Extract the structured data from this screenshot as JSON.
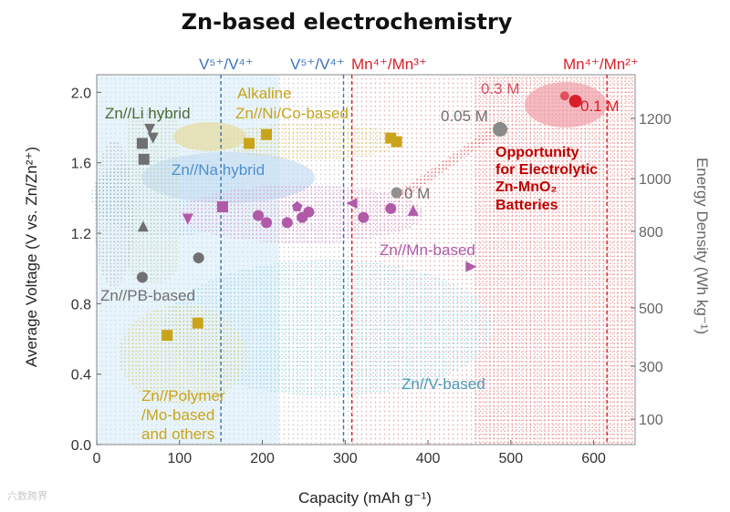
{
  "chart_data": {
    "type": "scatter",
    "title": "Zn-based electrochemistry",
    "xlabel": "Capacity (mAh g⁻¹)",
    "ylabel": "Average Voltage (V vs. Zn/Zn²⁺)",
    "y2label": "Energy Density (Wh kg⁻¹)",
    "xlim": [
      0,
      650
    ],
    "ylim": [
      0,
      2.1
    ],
    "x_ticks": [
      0,
      100,
      200,
      300,
      400,
      500,
      600
    ],
    "y_ticks": [
      0.0,
      0.4,
      0.8,
      1.2,
      1.6,
      2.0
    ],
    "y_tick_labels": [
      "0.0",
      "0.4",
      "0.8",
      "1.2",
      "1.6",
      "2.0"
    ],
    "y2_ticks": [
      1200,
      1000,
      800,
      500,
      300,
      100
    ],
    "vlines": [
      {
        "x": 150,
        "label": "V⁵⁺/V⁴⁺",
        "color": "#3a72b8"
      },
      {
        "x": 298,
        "label": "V⁵⁺/V⁴⁺",
        "color": "#3a72b8"
      },
      {
        "x": 308,
        "label": "Mn⁴⁺/Mn³⁺",
        "color": "#d8202a"
      },
      {
        "x": 616,
        "label": "Mn⁴⁺/Mn²⁺",
        "color": "#d8202a"
      }
    ],
    "regions": [
      {
        "name": "Zn//Li hybrid",
        "label": "Zn//Li hybrid",
        "color": "#4a6a3a"
      },
      {
        "name": "Alkaline Zn//Ni/Co-based",
        "label_lines": [
          "Alkaline",
          "Zn//Ni/Co-based"
        ],
        "color": "#c9a41a"
      },
      {
        "name": "Zn//Na hybrid",
        "label": "Zn//Na hybrid",
        "color": "#4f8fd0"
      },
      {
        "name": "Zn//Mn-based",
        "label": "Zn//Mn-based",
        "color": "#b05aa8"
      },
      {
        "name": "Zn//PB-based",
        "label": "Zn//PB-based",
        "color": "#707070"
      },
      {
        "name": "Zn//V-based",
        "label": "Zn//V-based",
        "color": "#4a9ab8"
      },
      {
        "name": "Zn//Polymer/Mo-based and others",
        "label_lines": [
          "Zn//Polymer",
          "/Mo-based",
          "and others"
        ],
        "color": "#c9a41a"
      }
    ],
    "series": [
      {
        "name": "Zn//Li hybrid",
        "marker": "triangle-down",
        "color": "#707070",
        "points": [
          [
            64,
            1.79
          ],
          [
            68,
            1.74
          ]
        ]
      },
      {
        "name": "Zn//PB-based",
        "marker": "mixed",
        "color": "#707070",
        "points": [
          [
            55,
            1.71
          ],
          [
            57,
            1.62
          ],
          [
            56,
            1.24
          ],
          [
            55,
            0.95
          ],
          [
            123,
            1.06
          ]
        ]
      },
      {
        "name": "Alkaline Zn//Ni/Co-based",
        "marker": "square",
        "color": "#c9a41a",
        "points": [
          [
            184,
            1.71
          ],
          [
            205,
            1.76
          ],
          [
            355,
            1.74
          ],
          [
            362,
            1.72
          ]
        ]
      },
      {
        "name": "Zn//Polymer/Mo-based and others",
        "marker": "square",
        "color": "#c9a41a",
        "points": [
          [
            85,
            0.62
          ],
          [
            122,
            0.69
          ]
        ]
      },
      {
        "name": "Zn//Mn-based",
        "marker": "mixed",
        "color": "#b05aa8",
        "points": [
          [
            110,
            1.28
          ],
          [
            152,
            1.35
          ],
          [
            195,
            1.3
          ],
          [
            205,
            1.26
          ],
          [
            230,
            1.26
          ],
          [
            242,
            1.35
          ],
          [
            248,
            1.29
          ],
          [
            256,
            1.32
          ],
          [
            322,
            1.29
          ],
          [
            355,
            1.34
          ],
          [
            382,
            1.33
          ],
          [
            452,
            1.01
          ],
          [
            308,
            1.37
          ]
        ]
      },
      {
        "name": "Electrolytic Zn-MnO2",
        "marker": "circle",
        "color": "#d8202a",
        "points": [
          [
            362,
            1.43
          ],
          [
            487,
            1.79
          ],
          [
            565,
            1.98
          ],
          [
            578,
            1.95
          ]
        ]
      }
    ],
    "annotations": [
      "0.3 M",
      "0.05 M",
      "0 M",
      "0.1 M"
    ],
    "callout": [
      "Opportunity",
      "for Electrolytic",
      "Zn-MnO₂",
      "Batteries"
    ],
    "callout_color": "#c00000"
  },
  "watermark": "六数跨界"
}
